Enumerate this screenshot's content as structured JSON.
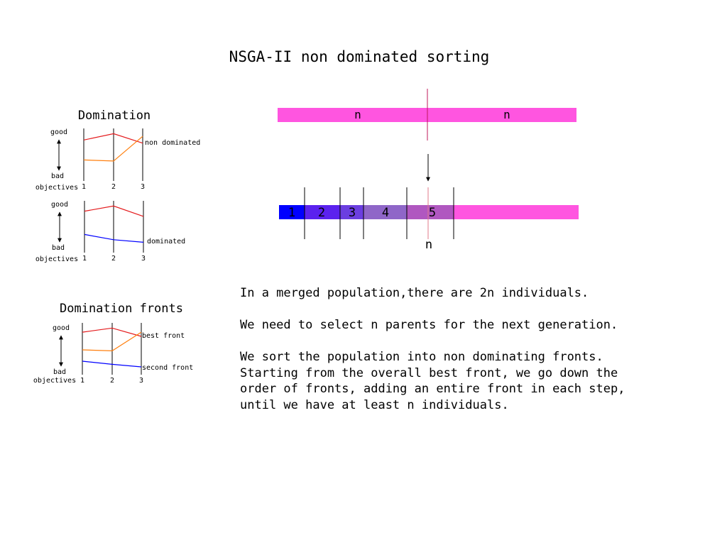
{
  "title": "NSGA-II non dominated sorting",
  "domination": {
    "heading": "Domination",
    "panel_nondominated": {
      "good": "good",
      "bad": "bad",
      "objectives": "objectives",
      "axis_ticks": [
        "1",
        "2",
        "3"
      ],
      "label": "non dominated",
      "lines": [
        {
          "color": "#e41a1c",
          "values": [
            0.78,
            0.9,
            0.72
          ]
        },
        {
          "color": "#ff7f0e",
          "values": [
            0.4,
            0.38,
            0.85
          ]
        }
      ]
    },
    "panel_dominated": {
      "good": "good",
      "bad": "bad",
      "objectives": "objectives",
      "axis_ticks": [
        "1",
        "2",
        "3"
      ],
      "label": "dominated",
      "lines": [
        {
          "color": "#e41a1c",
          "values": [
            0.8,
            0.9,
            0.7
          ]
        },
        {
          "color": "#0000ff",
          "values": [
            0.35,
            0.25,
            0.2
          ]
        }
      ]
    }
  },
  "fronts": {
    "heading": "Domination fronts",
    "good": "good",
    "bad": "bad",
    "objectives": "objectives",
    "axis_ticks": [
      "1",
      "2",
      "3"
    ],
    "best_label": "best front",
    "second_label": "second front",
    "lines": [
      {
        "color": "#e41a1c",
        "values": [
          0.82,
          0.9,
          0.74
        ]
      },
      {
        "color": "#ff7f0e",
        "values": [
          0.48,
          0.46,
          0.82
        ]
      },
      {
        "color": "#0000ff",
        "values": [
          0.26,
          0.2,
          0.15
        ]
      }
    ]
  },
  "population_bar": {
    "color": "#ff55e0",
    "half_labels": [
      "n",
      "n"
    ]
  },
  "fronts_bar": {
    "segments": [
      {
        "label": "1",
        "color": "#0000ff"
      },
      {
        "label": "2",
        "color": "#5b22ee"
      },
      {
        "label": "3",
        "color": "#6b3ee0"
      },
      {
        "label": "4",
        "color": "#8f66c8"
      },
      {
        "label": "5",
        "color": "#b057c0"
      }
    ],
    "rest_color": "#ff55e0",
    "n_label": "n"
  },
  "description": [
    "In a merged population,there are 2n individuals.",
    "",
    "We need to select n parents for the next generation.",
    "",
    "We sort the population into non dominating fronts.",
    "Starting from the overall best front, we go down the",
    "order of fronts, adding an entire front in each step,",
    "until we have at least n individuals."
  ]
}
